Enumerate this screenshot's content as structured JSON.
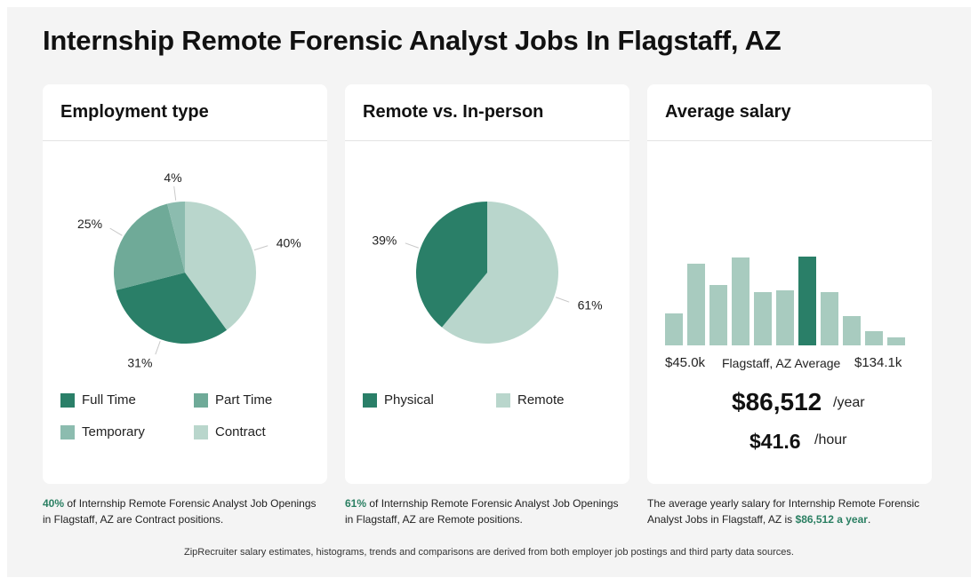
{
  "page": {
    "title": "Internship Remote Forensic Analyst Jobs In Flagstaff, AZ",
    "footnote": "ZipRecruiter salary estimates, histograms, trends and comparisons are derived from both employer job postings and third party data sources."
  },
  "colors": {
    "dark": "#2a7f68",
    "medium": "#6faa98",
    "light_medium": "#8cbcaf",
    "light": "#b9d6cc",
    "highlight_text": "#2a7f62"
  },
  "employment": {
    "title": "Employment type",
    "caption_pct": "40%",
    "caption_text": " of Internship Remote Forensic Analyst Job Openings in Flagstaff, AZ are Contract positions.",
    "legend": [
      {
        "label": "Full Time",
        "color": "#2a7f68"
      },
      {
        "label": "Part Time",
        "color": "#6faa98"
      },
      {
        "label": "Temporary",
        "color": "#8cbcaf"
      },
      {
        "label": "Contract",
        "color": "#b9d6cc"
      }
    ]
  },
  "remote": {
    "title": "Remote vs. In-person",
    "caption_pct": "61%",
    "caption_text": " of Internship Remote Forensic Analyst Job Openings in Flagstaff, AZ are Remote positions.",
    "legend": [
      {
        "label": "Physical",
        "color": "#2a7f68"
      },
      {
        "label": "Remote",
        "color": "#b9d6cc"
      }
    ]
  },
  "salary": {
    "title": "Average salary",
    "min_label": "$45.0k",
    "mid_label": "Flagstaff, AZ Average",
    "max_label": "$134.1k",
    "yearly": "$86,512",
    "yearly_unit": "/year",
    "hourly": "$41.6",
    "hourly_unit": "/hour",
    "caption_prefix": "The average yearly salary for Internship Remote Forensic Analyst Jobs in Flagstaff, AZ is ",
    "caption_highlight": "$86,512 a year",
    "caption_suffix": "."
  },
  "chart_data": [
    {
      "type": "pie",
      "title": "Employment type",
      "slices": [
        {
          "name": "Contract",
          "value": 40,
          "label": "40%",
          "color": "#b9d6cc"
        },
        {
          "name": "Full Time",
          "value": 31,
          "label": "31%",
          "color": "#2a7f68"
        },
        {
          "name": "Part Time",
          "value": 25,
          "label": "25%",
          "color": "#6faa98"
        },
        {
          "name": "Temporary",
          "value": 4,
          "label": "4%",
          "color": "#8cbcaf"
        }
      ]
    },
    {
      "type": "pie",
      "title": "Remote vs. In-person",
      "slices": [
        {
          "name": "Remote",
          "value": 61,
          "label": "61%",
          "color": "#b9d6cc"
        },
        {
          "name": "Physical",
          "value": 39,
          "label": "39%",
          "color": "#2a7f68"
        }
      ]
    },
    {
      "type": "bar",
      "title": "Average salary",
      "values": [
        36,
        92,
        68,
        99,
        60,
        62,
        100,
        60,
        33,
        16,
        9
      ],
      "highlight_index": 6,
      "color": "#a8cbbf",
      "highlight_color": "#2a7f68"
    }
  ]
}
